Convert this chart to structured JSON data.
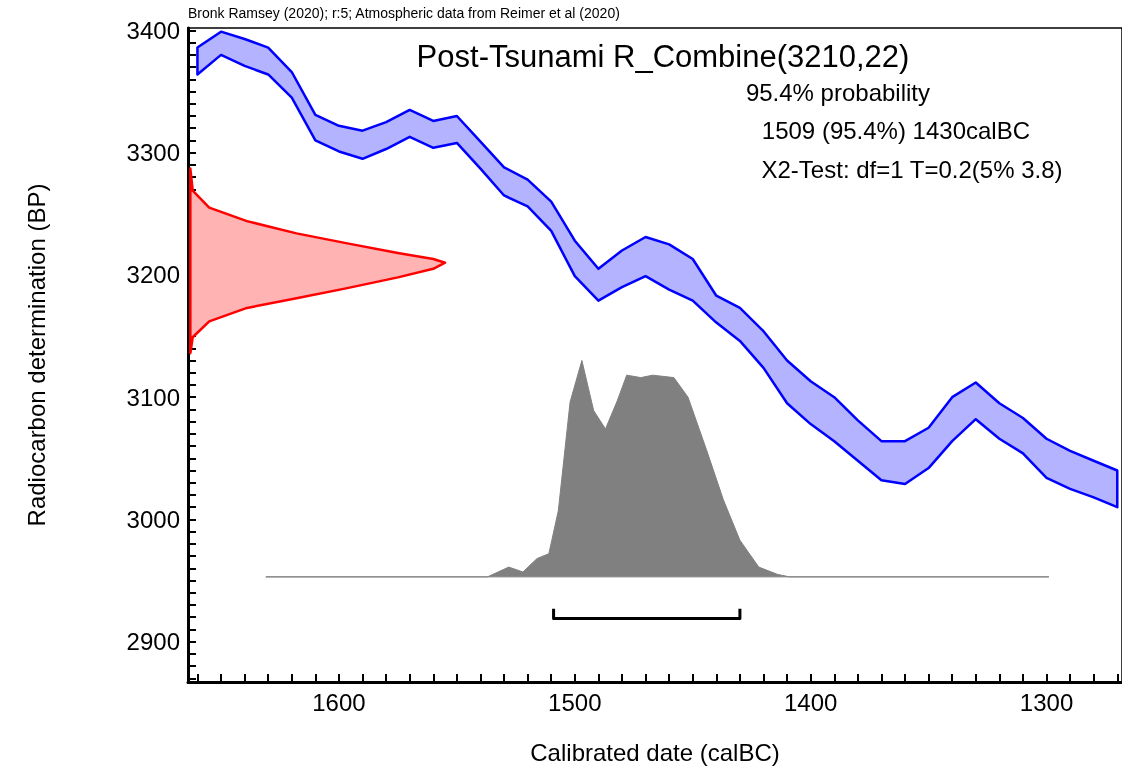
{
  "chart_data": {
    "type": "area",
    "title": "Post-Tsunami R_Combine(3210,22)",
    "xlabel": "Calibrated date (calBC)",
    "ylabel": "Radiocarbon determination (BP)",
    "annotations": [
      "Bronk Ramsey (2020); r:5; Atmospheric data from Reimer et al (2020)",
      "95.4% probability",
      "1509 (95.4%) 1430calBC",
      "X2-Test: df=1 T=0.2(5% 3.8)"
    ],
    "xlim": [
      1664,
      1268
    ],
    "ylim": [
      2867,
      3402
    ],
    "xticks": [
      {
        "value": 1660,
        "label": null
      },
      {
        "value": 1650,
        "label": null
      },
      {
        "value": 1640,
        "label": null
      },
      {
        "value": 1630,
        "label": null
      },
      {
        "value": 1620,
        "label": null
      },
      {
        "value": 1610,
        "label": null
      },
      1600,
      {
        "value": 1590,
        "label": null
      },
      {
        "value": 1580,
        "label": null
      },
      {
        "value": 1570,
        "label": null
      },
      {
        "value": 1560,
        "label": null
      },
      {
        "value": 1550,
        "label": null
      },
      {
        "value": 1540,
        "label": null
      },
      {
        "value": 1530,
        "label": null
      },
      {
        "value": 1520,
        "label": null
      },
      {
        "value": 1510,
        "label": null
      },
      1500,
      {
        "value": 1490,
        "label": null
      },
      {
        "value": 1480,
        "label": null
      },
      {
        "value": 1470,
        "label": null
      },
      {
        "value": 1460,
        "label": null
      },
      {
        "value": 1450,
        "label": null
      },
      {
        "value": 1440,
        "label": null
      },
      {
        "value": 1430,
        "label": null
      },
      {
        "value": 1420,
        "label": null
      },
      {
        "value": 1410,
        "label": null
      },
      1400,
      {
        "value": 1390,
        "label": null
      },
      {
        "value": 1380,
        "label": null
      },
      {
        "value": 1370,
        "label": null
      },
      {
        "value": 1360,
        "label": null
      },
      {
        "value": 1350,
        "label": null
      },
      {
        "value": 1340,
        "label": null
      },
      {
        "value": 1330,
        "label": null
      },
      {
        "value": 1320,
        "label": null
      },
      {
        "value": 1310,
        "label": null
      },
      1300,
      {
        "value": 1290,
        "label": null
      },
      {
        "value": 1280,
        "label": null
      },
      {
        "value": 1270,
        "label": null
      }
    ],
    "yticks": [
      {
        "value": 2870,
        "label": null
      },
      {
        "value": 2880,
        "label": null
      },
      {
        "value": 2890,
        "label": null
      },
      2900,
      {
        "value": 2910,
        "label": null
      },
      {
        "value": 2920,
        "label": null
      },
      {
        "value": 2930,
        "label": null
      },
      {
        "value": 2940,
        "label": null
      },
      {
        "value": 2950,
        "label": null
      },
      {
        "value": 2960,
        "label": null
      },
      {
        "value": 2970,
        "label": null
      },
      {
        "value": 2980,
        "label": null
      },
      {
        "value": 2990,
        "label": null
      },
      3000,
      {
        "value": 3010,
        "label": null
      },
      {
        "value": 3020,
        "label": null
      },
      {
        "value": 3030,
        "label": null
      },
      {
        "value": 3040,
        "label": null
      },
      {
        "value": 3050,
        "label": null
      },
      {
        "value": 3060,
        "label": null
      },
      {
        "value": 3070,
        "label": null
      },
      {
        "value": 3080,
        "label": null
      },
      {
        "value": 3090,
        "label": null
      },
      3100,
      {
        "value": 3110,
        "label": null
      },
      {
        "value": 3120,
        "label": null
      },
      {
        "value": 3130,
        "label": null
      },
      {
        "value": 3140,
        "label": null
      },
      {
        "value": 3150,
        "label": null
      },
      {
        "value": 3160,
        "label": null
      },
      {
        "value": 3170,
        "label": null
      },
      {
        "value": 3180,
        "label": null
      },
      {
        "value": 3190,
        "label": null
      },
      3200,
      {
        "value": 3210,
        "label": null
      },
      {
        "value": 3220,
        "label": null
      },
      {
        "value": 3230,
        "label": null
      },
      {
        "value": 3240,
        "label": null
      },
      {
        "value": 3250,
        "label": null
      },
      {
        "value": 3260,
        "label": null
      },
      {
        "value": 3270,
        "label": null
      },
      {
        "value": 3280,
        "label": null
      },
      {
        "value": 3290,
        "label": null
      },
      3300,
      {
        "value": 3310,
        "label": null
      },
      {
        "value": 3320,
        "label": null
      },
      {
        "value": 3330,
        "label": null
      },
      {
        "value": 3340,
        "label": null
      },
      {
        "value": 3350,
        "label": null
      },
      {
        "value": 3360,
        "label": null
      },
      {
        "value": 3370,
        "label": null
      },
      {
        "value": 3380,
        "label": null
      },
      {
        "value": 3390,
        "label": null
      },
      3400
    ],
    "series": [
      {
        "type": "line",
        "color": "#0000ff",
        "x": [
          1660,
          1650,
          1640,
          1630,
          1620,
          1610,
          1600,
          1590,
          1580,
          1570,
          1560,
          1550,
          1540,
          1530,
          1520,
          1510,
          1500,
          1490,
          1480,
          1470,
          1460,
          1450,
          1440,
          1430,
          1420,
          1410,
          1400,
          1390,
          1380,
          1370,
          1360,
          1350,
          1340,
          1330,
          1320,
          1310,
          1300,
          1290,
          1280,
          1270
        ],
        "values": [
          null,
          null,
          null,
          null,
          null,
          null,
          null,
          null,
          null,
          null,
          null,
          null,
          null,
          null,
          null,
          null,
          null,
          null,
          null,
          null,
          null,
          null,
          null,
          null,
          null,
          null,
          null,
          null,
          null,
          null,
          null,
          null,
          null,
          null,
          null,
          null,
          null,
          null,
          null,
          null
        ],
        "upper": [
          3386,
          3399,
          3393,
          3386,
          3366,
          3331,
          3322,
          3318,
          3325,
          3335,
          3326,
          3330,
          3309,
          3288,
          3278,
          3260,
          3228,
          3205,
          3220,
          3231,
          3225,
          3213,
          3183,
          3173,
          3154,
          3130,
          3113,
          3100,
          3081,
          3064,
          3064,
          3075,
          3100,
          3112,
          3095,
          3083,
          3066,
          3056,
          3048,
          3040
        ],
        "lower": [
          3364,
          3380,
          3371,
          3364,
          3345,
          3310,
          3301,
          3295,
          3303,
          3313,
          3304,
          3308,
          3287,
          3265,
          3256,
          3236,
          3199,
          3179,
          3190,
          3199,
          3188,
          3179,
          3161,
          3146,
          3124,
          3095,
          3078,
          3064,
          3048,
          3032,
          3029,
          3042,
          3064,
          3082,
          3066,
          3054,
          3034,
          3025,
          3018,
          3010
        ]
      },
      {
        "color": "#ff0000",
        "x": [
          1663,
          1662,
          1655,
          1639,
          1618,
          1597,
          1575,
          1560,
          1555,
          1560,
          1575,
          1597,
          1618,
          1639,
          1655,
          1662,
          1663
        ],
        "values": [
          3287,
          3269,
          3255,
          3244,
          3234,
          3226,
          3218,
          3213,
          3210,
          3205,
          3198,
          3189,
          3181,
          3173,
          3162,
          3149,
          3136
        ]
      },
      {
        "color": "#808080",
        "x": [
          1631,
          1537,
          1528,
          1522,
          1516,
          1511,
          1507,
          1502,
          1497,
          1492,
          1487,
          1482,
          1478,
          1472,
          1467,
          1458,
          1452,
          1444,
          1437,
          1430,
          1422,
          1414,
          1409,
          1299
        ],
        "values": [
          2953,
          2953,
          2961,
          2957,
          2968,
          2972,
          3007,
          3096,
          3130,
          3089,
          3074,
          3097,
          3118,
          3116,
          3118,
          3116,
          3100,
          3056,
          3016,
          2983,
          2961,
          2955,
          2953,
          2953
        ]
      },
      {
        "type": "line",
        "color": "#000000",
        "x": [
          1509,
          1509,
          1430,
          1430
        ],
        "values": [
          2927,
          2919,
          2919,
          2927
        ]
      }
    ]
  }
}
